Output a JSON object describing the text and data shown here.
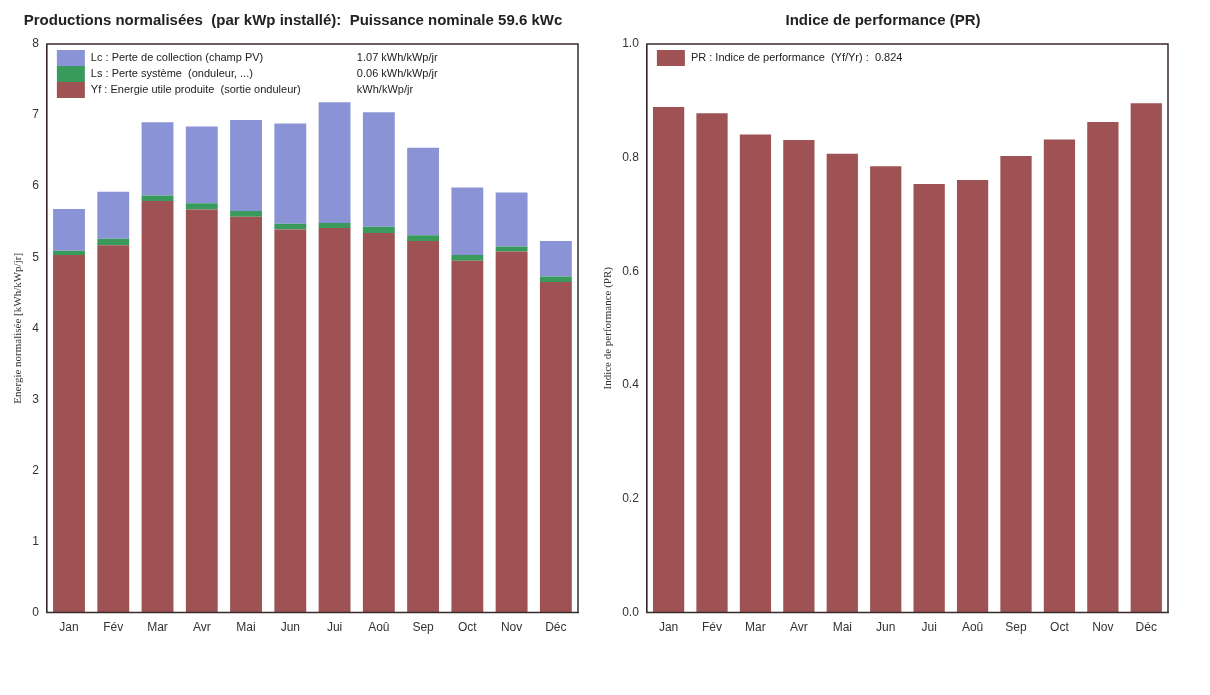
{
  "chart_data": [
    {
      "type": "bar",
      "title": "Productions normalisées  (par kWp installé):  Puissance nominale 59.6 kWc",
      "ylabel": "Energie normalisée [kWh/kWp/jr]",
      "categories": [
        "Jan",
        "Fév",
        "Mar",
        "Avr",
        "Mai",
        "Jun",
        "Jui",
        "Aoû",
        "Sep",
        "Oct",
        "Nov",
        "Déc"
      ],
      "stacked": true,
      "series": [
        {
          "name": "Yf : Energie utile produite  (sortie onduleur)",
          "color": "#9e5254",
          "values": [
            5.03,
            5.17,
            5.79,
            5.67,
            5.57,
            5.39,
            5.41,
            5.34,
            5.23,
            4.95,
            5.08,
            4.65
          ]
        },
        {
          "name": "Ls : Perte système  (onduleur, ...)",
          "color": "#3a9a5c",
          "values": [
            0.06,
            0.09,
            0.08,
            0.09,
            0.08,
            0.08,
            0.07,
            0.09,
            0.08,
            0.08,
            0.07,
            0.08
          ]
        },
        {
          "name": "Lc : Perte de collection (champ PV)",
          "color": "#8a93d6",
          "values": [
            0.59,
            0.66,
            1.03,
            1.08,
            1.28,
            1.41,
            1.7,
            1.61,
            1.23,
            0.95,
            0.76,
            0.5
          ]
        }
      ],
      "annotations": [
        "kWh/kWp/jr",
        "0.06 kWh/kWp/jr",
        "1.07 kWh/kWp/jr"
      ],
      "ylim": [
        0,
        8
      ],
      "yticks": [
        0,
        1,
        2,
        3,
        4,
        5,
        6,
        7,
        8
      ],
      "grid": false,
      "legend": "top left"
    },
    {
      "type": "bar",
      "title": "Indice de performance (PR)",
      "ylabel": "Indice de performance (PR)",
      "categories": [
        "Jan",
        "Fév",
        "Mar",
        "Avr",
        "Mai",
        "Jun",
        "Jui",
        "Aoû",
        "Sep",
        "Oct",
        "Nov",
        "Déc"
      ],
      "series": [
        {
          "name": "PR : Indice de performance  (Yf/Yr) :  0.824",
          "color": "#9e5254",
          "values": [
            0.889,
            0.878,
            0.841,
            0.831,
            0.807,
            0.785,
            0.754,
            0.761,
            0.803,
            0.832,
            0.863,
            0.896
          ]
        }
      ],
      "ylim": [
        0,
        1
      ],
      "yticks": [
        {
          "value": 0,
          "label": "0.0"
        },
        {
          "value": 0.2,
          "label": "0.2"
        },
        {
          "value": 0.4,
          "label": "0.4"
        },
        {
          "value": 0.6,
          "label": "0.6"
        },
        {
          "value": 0.8,
          "label": "0.8"
        },
        {
          "value": 1,
          "label": "1.0"
        }
      ],
      "grid": false,
      "legend": "top left"
    }
  ]
}
